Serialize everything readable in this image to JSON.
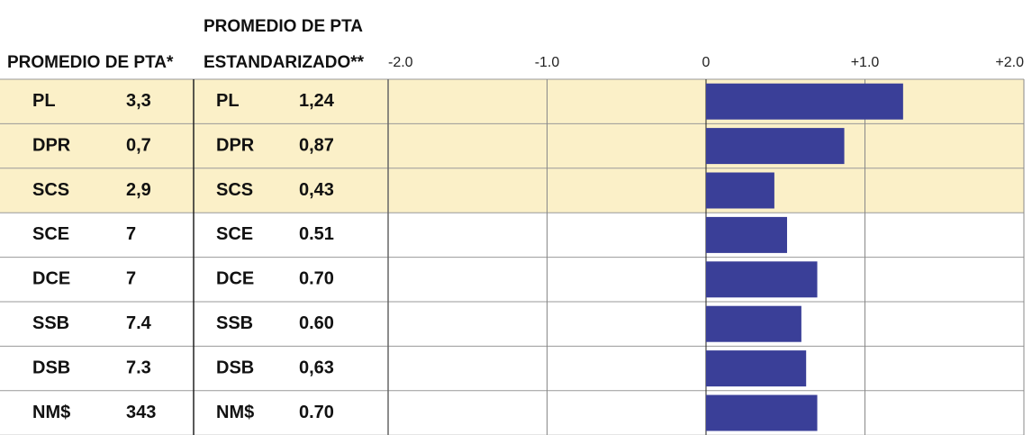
{
  "table": {
    "header": "PROMEDIO DE PTA*",
    "rows": [
      [
        "PL",
        "3,3"
      ],
      [
        "DPR",
        "0,7"
      ],
      [
        "SCS",
        "2,9"
      ],
      [
        "SCE",
        "7"
      ],
      [
        "DCE",
        "7"
      ],
      [
        "SSB",
        "7.4"
      ],
      [
        "DSB",
        "7.3"
      ],
      [
        "NM$",
        "343"
      ]
    ],
    "highlighted_rows": [
      0,
      1,
      2
    ],
    "highlight_color": "#fbf0c8"
  },
  "chart_data": {
    "type": "bar",
    "orientation": "horizontal",
    "title": [
      "PROMEDIO DE PTA",
      "ESTANDARIZADO**"
    ],
    "categories": [
      "PL",
      "DPR",
      "SCS",
      "SCE",
      "DCE",
      "SSB",
      "DSB",
      "NM$"
    ],
    "values": [
      1.24,
      0.87,
      0.43,
      0.51,
      0.7,
      0.6,
      0.63,
      0.7
    ],
    "value_labels": [
      "1,24",
      "0,87",
      "0,43",
      "0.51",
      "0.70",
      "0.60",
      "0,63",
      "0.70"
    ],
    "color": "#3a3f98",
    "xlim": [
      -2,
      2
    ],
    "xticks": [
      {
        "value": -2,
        "label": "-2.0"
      },
      {
        "value": -1,
        "label": "-1.0"
      },
      0,
      {
        "value": 1,
        "label": "+1.0"
      },
      {
        "value": 2,
        "label": "+2.0"
      }
    ],
    "grid": true
  }
}
